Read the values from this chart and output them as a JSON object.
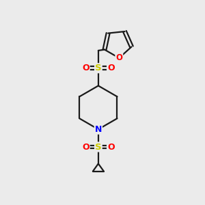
{
  "bg_color": "#ebebeb",
  "bond_color": "#1a1a1a",
  "atom_colors": {
    "O": "#ff0000",
    "N": "#0000ff",
    "S": "#cccc00",
    "C": "#1a1a1a"
  },
  "line_width": 1.6,
  "figsize": [
    3.0,
    3.0
  ],
  "dpi": 100
}
